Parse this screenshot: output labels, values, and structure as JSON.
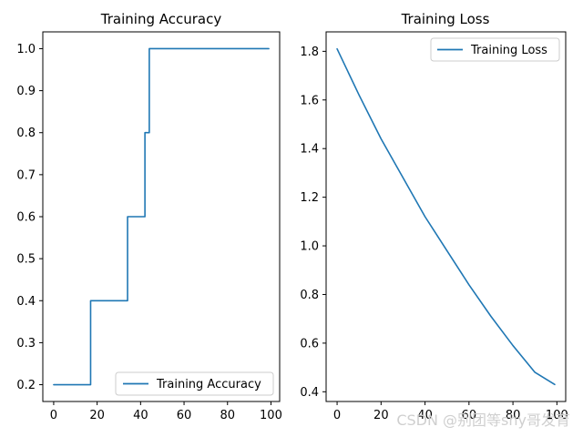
{
  "chart_data": [
    {
      "type": "line",
      "title": "Training Accuracy",
      "xlabel": "",
      "ylabel": "",
      "xlim": [
        -5,
        104
      ],
      "ylim": [
        0.16,
        1.04
      ],
      "xticks": [
        0,
        20,
        40,
        60,
        80,
        100
      ],
      "xtick_labels": [
        "0",
        "20",
        "40",
        "60",
        "80",
        "100"
      ],
      "yticks": [
        0.2,
        0.3,
        0.4,
        0.5,
        0.6,
        0.7,
        0.8,
        0.9,
        1.0
      ],
      "ytick_labels": [
        "0.2",
        "0.3",
        "0.4",
        "0.5",
        "0.6",
        "0.7",
        "0.8",
        "0.9",
        "1.0"
      ],
      "legend": {
        "placement": "lower-right",
        "entries": [
          "Training Accuracy"
        ]
      },
      "series": [
        {
          "name": "Training Accuracy",
          "color": "#1f77b4",
          "x": [
            0,
            16,
            17,
            33,
            34,
            41,
            42,
            43,
            44,
            99
          ],
          "y": [
            0.2,
            0.2,
            0.4,
            0.4,
            0.6,
            0.6,
            0.8,
            0.8,
            1.0,
            1.0
          ],
          "step": "post"
        }
      ]
    },
    {
      "type": "line",
      "title": "Training Loss",
      "xlabel": "",
      "ylabel": "",
      "xlim": [
        -5,
        104
      ],
      "ylim": [
        0.36,
        1.88
      ],
      "xticks": [
        0,
        20,
        40,
        60,
        80,
        100
      ],
      "xtick_labels": [
        "0",
        "20",
        "40",
        "60",
        "80",
        "100"
      ],
      "yticks": [
        0.4,
        0.6,
        0.8,
        1.0,
        1.2,
        1.4,
        1.6,
        1.8
      ],
      "ytick_labels": [
        "0.4",
        "0.6",
        "0.8",
        "1.0",
        "1.2",
        "1.4",
        "1.6",
        "1.8"
      ],
      "legend": {
        "placement": "upper-right",
        "entries": [
          "Training Loss"
        ]
      },
      "series": [
        {
          "name": "Training Loss",
          "color": "#1f77b4",
          "x": [
            0,
            10,
            20,
            30,
            40,
            50,
            60,
            70,
            80,
            90,
            99
          ],
          "y": [
            1.81,
            1.62,
            1.44,
            1.28,
            1.12,
            0.98,
            0.84,
            0.71,
            0.59,
            0.48,
            0.43
          ]
        }
      ]
    }
  ],
  "watermark": "CSDN @别团等shy哥发育"
}
